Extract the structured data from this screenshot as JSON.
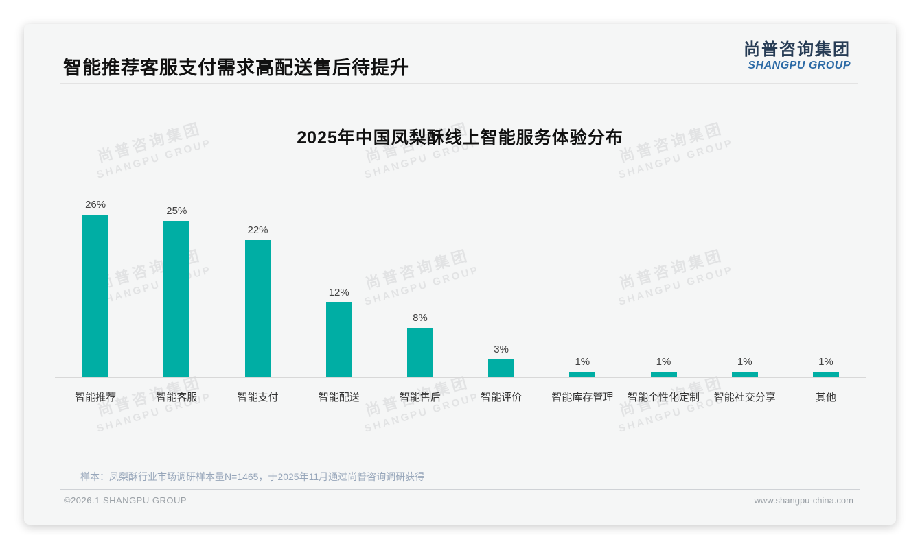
{
  "page": {
    "header": {
      "title": "智能推荐客服支付需求高配送售后待提升"
    },
    "logo": {
      "cn": "尚普咨询集团",
      "en": "SHANGPU GROUP"
    },
    "note": "样本：凤梨酥行业市场调研样本量N=1465，于2025年11月通过尚普咨询调研获得",
    "footer": {
      "copyright": "©2026.1 SHANGPU GROUP",
      "website": "www.shangpu-china.com"
    },
    "watermark": {
      "line1": "尚普咨询集团",
      "line2": "SHANGPU GROUP"
    }
  },
  "chart_data": {
    "type": "bar",
    "title": "2025年中国凤梨酥线上智能服务体验分布",
    "categories": [
      "智能推荐",
      "智能客服",
      "智能支付",
      "智能配送",
      "智能售后",
      "智能评价",
      "智能库存管理",
      "智能个性化定制",
      "智能社交分享",
      "其他"
    ],
    "values": [
      26,
      25,
      22,
      12,
      8,
      3,
      1,
      1,
      1,
      1
    ],
    "value_labels": [
      "26%",
      "25%",
      "22%",
      "12%",
      "8%",
      "3%",
      "1%",
      "1%",
      "1%",
      "1%"
    ],
    "unit": "%",
    "bar_color": "#00AEA4",
    "ylim": [
      0,
      28
    ],
    "grid": false,
    "legend": null,
    "xlabel": "",
    "ylabel": ""
  }
}
